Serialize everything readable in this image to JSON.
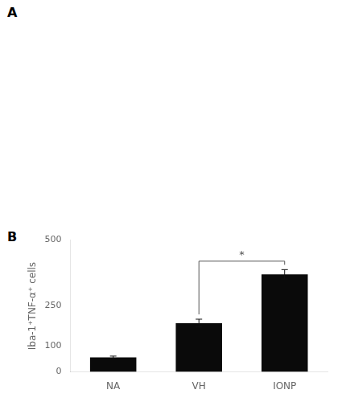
{
  "chart_data": {
    "type": "bar",
    "categories": [
      "NA",
      "VH",
      "IONP"
    ],
    "values": [
      55,
      185,
      370
    ],
    "errors": [
      5,
      15,
      18
    ],
    "color": "#0a0a0a",
    "ylabel": "Iba-1⁺TNF-α⁺ cells",
    "ylim": [
      0,
      500
    ],
    "yticks": [
      0,
      100,
      250,
      500
    ],
    "grid": false,
    "annotations": [
      {
        "text": "A"
      },
      {
        "text": "B"
      },
      {
        "text": "*",
        "x": [
          "VH",
          "IONP"
        ],
        "y": 420
      }
    ]
  }
}
